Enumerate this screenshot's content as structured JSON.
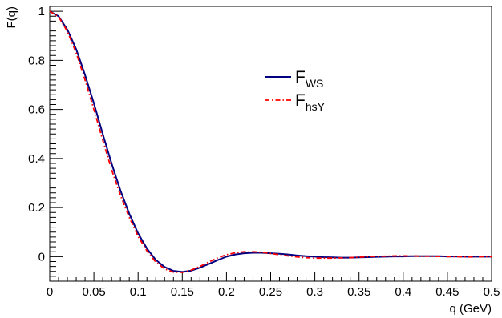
{
  "chart_data": {
    "type": "line",
    "xlabel": "q (GeV)",
    "ylabel": "F(q)",
    "xlim": [
      0,
      0.5
    ],
    "ylim": [
      -0.1,
      1.02
    ],
    "x_ticks": [
      0,
      0.05,
      0.1,
      0.15,
      0.2,
      0.25,
      0.3,
      0.35,
      0.4,
      0.45,
      0.5
    ],
    "x_tick_labels": [
      "0",
      "0.05",
      "0.1",
      "0.15",
      "0.2",
      "0.25",
      "0.3",
      "0.35",
      "0.4",
      "0.45",
      "0.5"
    ],
    "y_ticks": [
      0,
      0.2,
      0.4,
      0.6,
      0.8,
      1
    ],
    "y_tick_labels": [
      "0",
      "0.2",
      "0.4",
      "0.6",
      "0.8",
      "1"
    ],
    "grid": false,
    "legend_position": "top-center",
    "series": [
      {
        "name": "F",
        "subscript": "WS",
        "color": "#000080",
        "style": "solid",
        "x": [
          0,
          0.01,
          0.02,
          0.03,
          0.04,
          0.05,
          0.06,
          0.07,
          0.08,
          0.09,
          0.1,
          0.11,
          0.12,
          0.13,
          0.14,
          0.15,
          0.16,
          0.17,
          0.18,
          0.19,
          0.2,
          0.21,
          0.22,
          0.23,
          0.24,
          0.25,
          0.26,
          0.27,
          0.28,
          0.29,
          0.3,
          0.31,
          0.32,
          0.33,
          0.34,
          0.35,
          0.36,
          0.37,
          0.38,
          0.39,
          0.4,
          0.41,
          0.42,
          0.43,
          0.44,
          0.45,
          0.46,
          0.47,
          0.48,
          0.49,
          0.5
        ],
        "values": [
          1.0,
          0.98,
          0.925,
          0.845,
          0.74,
          0.625,
          0.5,
          0.38,
          0.27,
          0.175,
          0.095,
          0.033,
          -0.013,
          -0.042,
          -0.058,
          -0.062,
          -0.057,
          -0.045,
          -0.03,
          -0.014,
          0.0,
          0.009,
          0.014,
          0.016,
          0.016,
          0.014,
          0.012,
          0.009,
          0.005,
          0.002,
          0.0,
          -0.002,
          -0.003,
          -0.004,
          -0.004,
          -0.003,
          -0.002,
          -0.001,
          0.0,
          0.001,
          0.001,
          0.002,
          0.002,
          0.002,
          0.002,
          0.001,
          0.001,
          0.0,
          0.0,
          0.0,
          0.0
        ]
      },
      {
        "name": "F",
        "subscript": "hsY",
        "color": "#ff0000",
        "style": "dash-dot",
        "x": [
          0,
          0.01,
          0.02,
          0.03,
          0.04,
          0.05,
          0.06,
          0.07,
          0.08,
          0.09,
          0.1,
          0.11,
          0.12,
          0.13,
          0.14,
          0.15,
          0.16,
          0.17,
          0.18,
          0.19,
          0.2,
          0.21,
          0.22,
          0.23,
          0.24,
          0.25,
          0.26,
          0.27,
          0.28,
          0.29,
          0.3,
          0.31,
          0.32,
          0.33,
          0.34,
          0.35,
          0.36,
          0.37,
          0.38,
          0.39,
          0.4,
          0.41,
          0.42,
          0.43,
          0.44,
          0.45,
          0.46,
          0.47,
          0.48,
          0.49,
          0.5
        ],
        "values": [
          1.0,
          0.978,
          0.918,
          0.83,
          0.72,
          0.6,
          0.475,
          0.355,
          0.25,
          0.16,
          0.083,
          0.023,
          -0.022,
          -0.05,
          -0.063,
          -0.064,
          -0.055,
          -0.04,
          -0.022,
          -0.005,
          0.008,
          0.016,
          0.02,
          0.02,
          0.018,
          0.013,
          0.008,
          0.003,
          -0.001,
          -0.004,
          -0.006,
          -0.006,
          -0.006,
          -0.005,
          -0.004,
          -0.002,
          0.0,
          0.001,
          0.002,
          0.003,
          0.003,
          0.003,
          0.002,
          0.002,
          0.001,
          0.0,
          0.0,
          -0.001,
          -0.001,
          0.0,
          0.0
        ]
      }
    ]
  }
}
